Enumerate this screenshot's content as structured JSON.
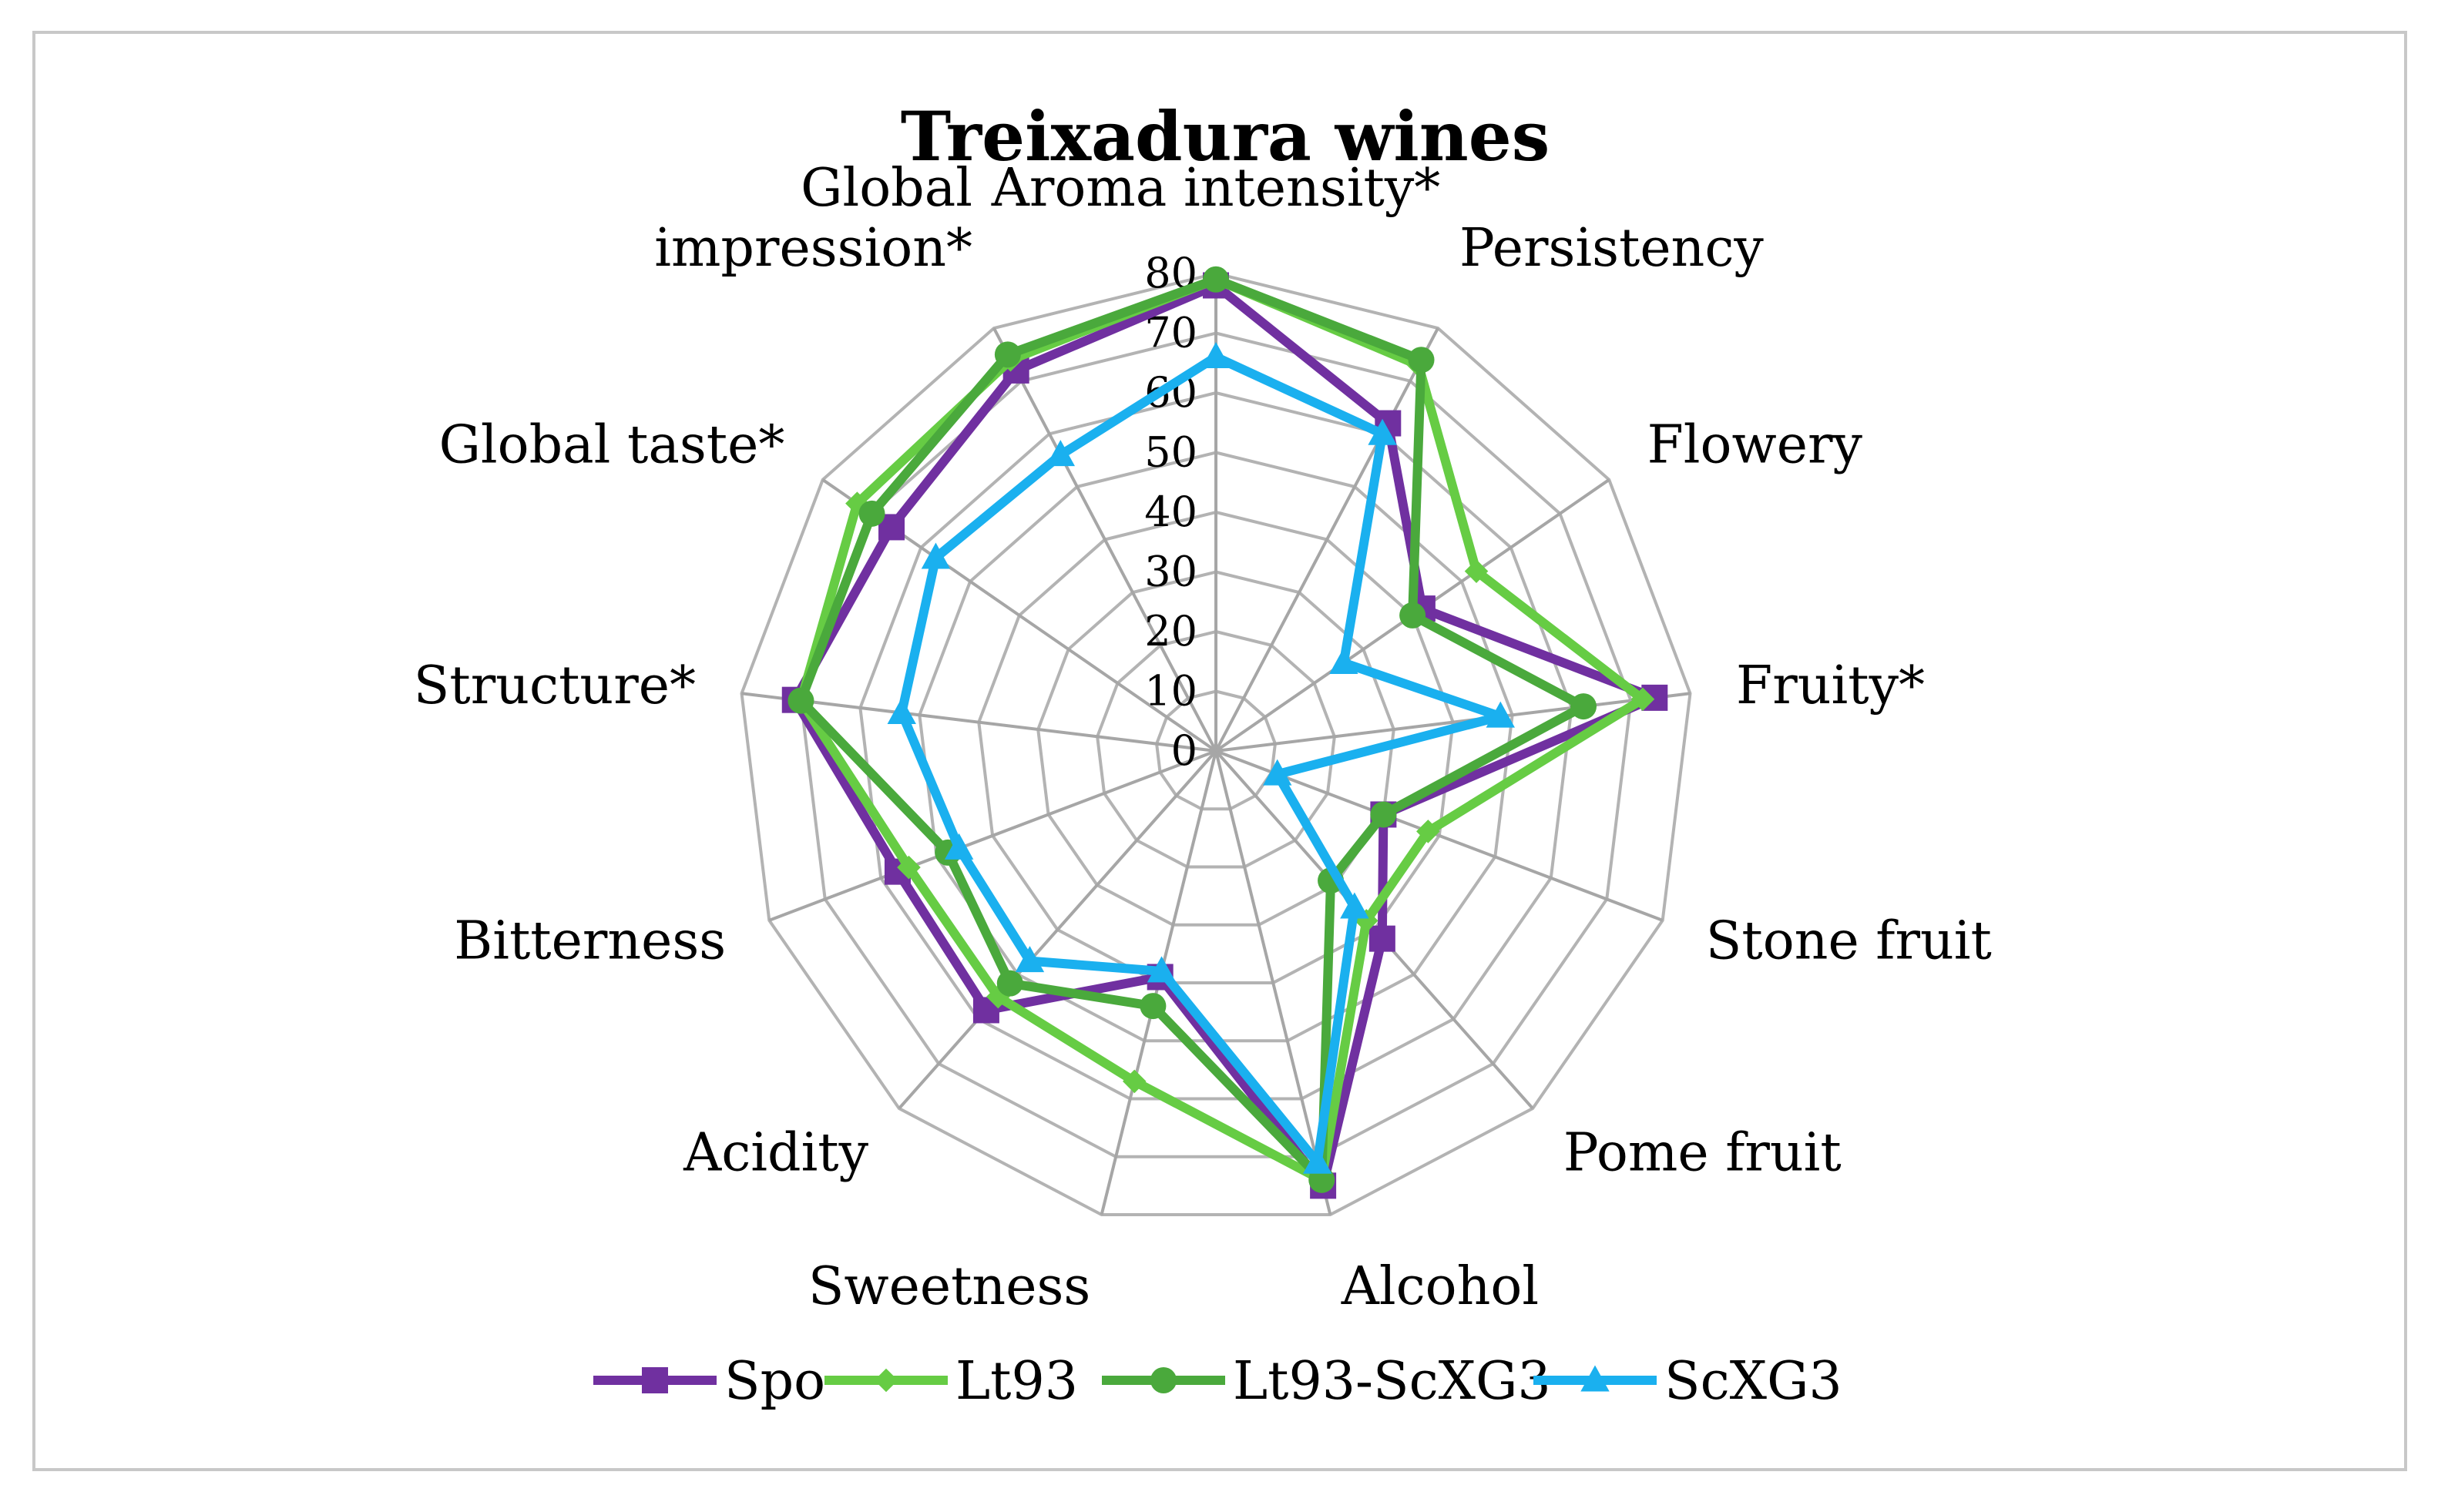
{
  "chart_data": {
    "type": "radar",
    "title": "Treixadura wines",
    "categories": [
      [
        "Aroma intensity*"
      ],
      [
        "Persistency"
      ],
      [
        "Flowery"
      ],
      [
        "Fruity*"
      ],
      [
        "Stone fruit"
      ],
      [
        "Pome fruit"
      ],
      [
        "Alcohol"
      ],
      [
        "Sweetness"
      ],
      [
        "Acidity"
      ],
      [
        "Bitterness"
      ],
      [
        "Structure*"
      ],
      [
        "Global taste*"
      ],
      [
        "Global",
        "impression*"
      ]
    ],
    "radial_ticks": [
      "0",
      "10",
      "20",
      "30",
      "40",
      "50",
      "60",
      "70",
      "80"
    ],
    "rmax": 80,
    "grid": true,
    "legend_position": "bottom",
    "series": [
      {
        "name": "Spo",
        "color": "#7030a0",
        "marker": "square",
        "values": [
          78,
          62,
          42,
          74,
          30,
          42,
          75,
          39,
          58,
          57,
          71,
          66,
          72
        ]
      },
      {
        "name": "Lt93",
        "color": "#66cc44",
        "marker": "diamond",
        "values": [
          79,
          73,
          53,
          72,
          38,
          38,
          74,
          57,
          55,
          55,
          70,
          73,
          74
        ]
      },
      {
        "name": "Lt93-ScXG3",
        "color": "#4aa93c",
        "marker": "circle",
        "values": [
          79,
          74,
          40,
          62,
          30,
          29,
          74,
          44,
          52,
          48,
          70,
          70,
          75
        ]
      },
      {
        "name": "ScXG3",
        "color": "#1ab0ef",
        "marker": "triangle",
        "values": [
          66,
          60,
          26,
          48,
          11,
          35,
          71,
          38,
          47,
          46,
          53,
          57,
          56
        ]
      }
    ]
  }
}
